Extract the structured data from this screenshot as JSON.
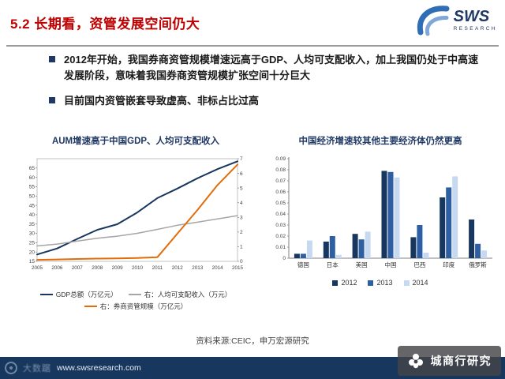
{
  "slide": {
    "title": "5.2 长期看，资管发展空间仍大"
  },
  "logo": {
    "text": "SWS",
    "subtext": "RESEARCH"
  },
  "bullets": [
    "2012年开始，我国券商资管规模增速远高于GDP、人均可支配收入，加上我国仍处于中高速发展阶段，意味着我国券商资管规模扩张空间十分巨大",
    "目前国内资管嵌套导致虚高、非标占比过高"
  ],
  "chart_data": [
    {
      "type": "line",
      "title": "AUM增速高于中国GDP、人均可支配收入",
      "x": [
        "2005",
        "2006",
        "2007",
        "2008",
        "2009",
        "2010",
        "2011",
        "2012",
        "2013",
        "2014",
        "2015"
      ],
      "left_axis": {
        "min": 15,
        "max": 70,
        "ticks": [
          15,
          20,
          25,
          30,
          35,
          40,
          45,
          50,
          55,
          60,
          65
        ]
      },
      "right_axis": {
        "min": 0,
        "max": 7,
        "ticks": [
          0,
          1,
          2,
          3,
          4,
          5,
          6,
          7
        ]
      },
      "series": [
        {
          "name": "GDP总额（万亿元）",
          "axis": "left",
          "color": "#17375E",
          "width": 2,
          "values": [
            18.7,
            21.9,
            27.0,
            31.9,
            34.9,
            41.2,
            48.9,
            54.0,
            59.5,
            64.4,
            68.6
          ]
        },
        {
          "name": "右：人均可支配收入（万元）",
          "axis": "right",
          "color": "#A6A6A6",
          "width": 1.5,
          "values": [
            1.05,
            1.18,
            1.38,
            1.58,
            1.72,
            1.91,
            2.18,
            2.46,
            2.67,
            2.89,
            3.12
          ]
        },
        {
          "name": "右：券商资管规模（万亿元）",
          "axis": "right",
          "color": "#E36C0A",
          "width": 2,
          "values": [
            0.1,
            0.13,
            0.16,
            0.19,
            0.2,
            0.23,
            0.28,
            1.89,
            3.5,
            5.2,
            6.6
          ]
        }
      ]
    },
    {
      "type": "bar",
      "title": "中国经济增速较其他主要经济体仍然更高",
      "categories": [
        "德国",
        "日本",
        "美国",
        "中国",
        "巴西",
        "印度",
        "俄罗斯"
      ],
      "ylim": [
        0,
        0.09
      ],
      "yticks": [
        0,
        0.01,
        0.02,
        0.03,
        0.04,
        0.05,
        0.06,
        0.07,
        0.08,
        0.09
      ],
      "series": [
        {
          "name": "2012",
          "color": "#17375E",
          "values": [
            0.004,
            0.015,
            0.022,
            0.079,
            0.019,
            0.055,
            0.035
          ]
        },
        {
          "name": "2013",
          "color": "#2E5FA3",
          "values": [
            0.004,
            0.02,
            0.017,
            0.078,
            0.03,
            0.064,
            0.013
          ]
        },
        {
          "name": "2014",
          "color": "#C6D9F1",
          "values": [
            0.016,
            0.003,
            0.024,
            0.073,
            0.005,
            0.074,
            0.007
          ]
        }
      ]
    }
  ],
  "source_note": "资料来源:CEIC，申万宏源研究",
  "footer": {
    "watermark": "大数踞",
    "url": "www.swsresearch.com",
    "wechat_badge": "城商行研究"
  },
  "colors": {
    "accent_red": "#BE0000",
    "navy": "#17375E",
    "orange": "#E36C0A",
    "gray_line": "#A6A6A6",
    "footer_bg": "#17375E"
  }
}
